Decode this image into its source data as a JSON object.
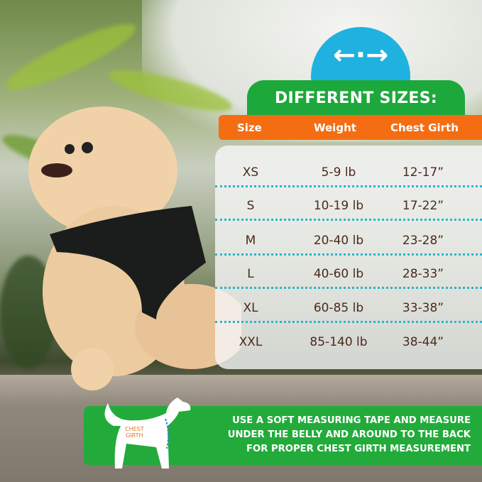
{
  "banner": {
    "icon": "left-right-arrows-icon",
    "arrows": "←·→",
    "title": "DIFFERENT SIZES:"
  },
  "table": {
    "headers": [
      "Size",
      "Weight",
      "Chest Girth"
    ],
    "rows": [
      [
        "XS",
        "5-9 lb",
        "12-17”"
      ],
      [
        "S",
        "10-19 lb",
        "17-22”"
      ],
      [
        "M",
        "20-40 lb",
        "23-28”"
      ],
      [
        "L",
        "40-60 lb",
        "28-33”"
      ],
      [
        "XL",
        "60-85 lb",
        "33-38”"
      ],
      [
        "XXL",
        "85-140 lb",
        "38-44”"
      ]
    ]
  },
  "note": {
    "lines": [
      "USE A SOFT MEASURING TAPE AND MEASURE",
      "UNDER THE BELLY AND AROUND TO THE BACK",
      "FOR PROPER CHEST GIRTH MEASUREMENT"
    ],
    "diagram_label": [
      "CHEST",
      "GIRTH"
    ]
  },
  "colors": {
    "blue": "#1fb1e0",
    "green": "#1da83b",
    "orange": "#f46d12",
    "dots": "#2bb5c9",
    "text": "#4a2a1c"
  }
}
